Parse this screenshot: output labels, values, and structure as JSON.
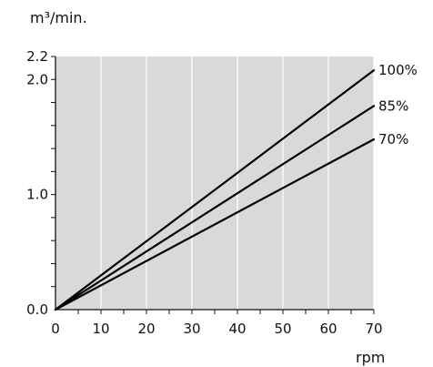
{
  "chart_data": {
    "type": "line",
    "title": "",
    "xlabel": "rpm",
    "ylabel": "m³/min.",
    "xlim": [
      0,
      70
    ],
    "ylim": [
      0,
      2.2
    ],
    "x_ticks": [
      0,
      10,
      20,
      30,
      40,
      50,
      60,
      70
    ],
    "x_tick_labels": [
      "0",
      "10",
      "20",
      "30",
      "40",
      "50",
      "60",
      "70"
    ],
    "y_ticks": [
      0.0,
      1.0,
      2.0,
      2.2
    ],
    "y_tick_labels": [
      "0.0",
      "1.0",
      "2.0",
      "2.2"
    ],
    "grid": true,
    "background_color": "#d9d9d9",
    "grid_color": "#ffffff",
    "line_color": "#000000",
    "series": [
      {
        "name": "100%",
        "x": [
          0,
          70
        ],
        "y": [
          0,
          2.08
        ]
      },
      {
        "name": "85%",
        "x": [
          0,
          70
        ],
        "y": [
          0,
          1.77
        ]
      },
      {
        "name": "70%",
        "x": [
          0,
          70
        ],
        "y": [
          0,
          1.48
        ]
      }
    ]
  }
}
